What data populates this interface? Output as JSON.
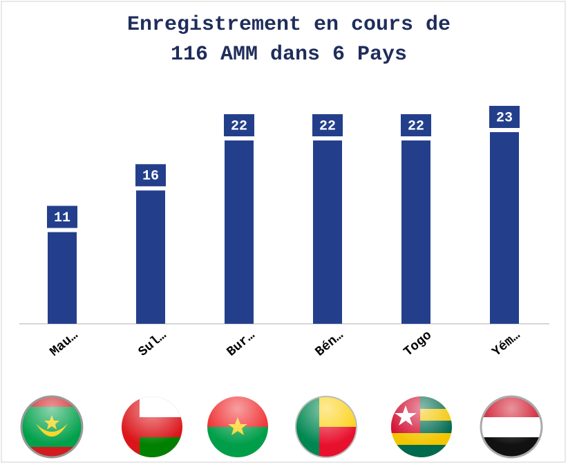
{
  "chart_data": {
    "type": "bar",
    "title": [
      "Enregistrement en cours de",
      "116 AMM dans 6 Pays"
    ],
    "categories": [
      "Mau…",
      "Sul…",
      "Bur…",
      "Bén…",
      "Togo",
      "Yém…"
    ],
    "values": [
      11,
      16,
      22,
      22,
      22,
      23
    ],
    "color": "#233f8c"
  }
}
